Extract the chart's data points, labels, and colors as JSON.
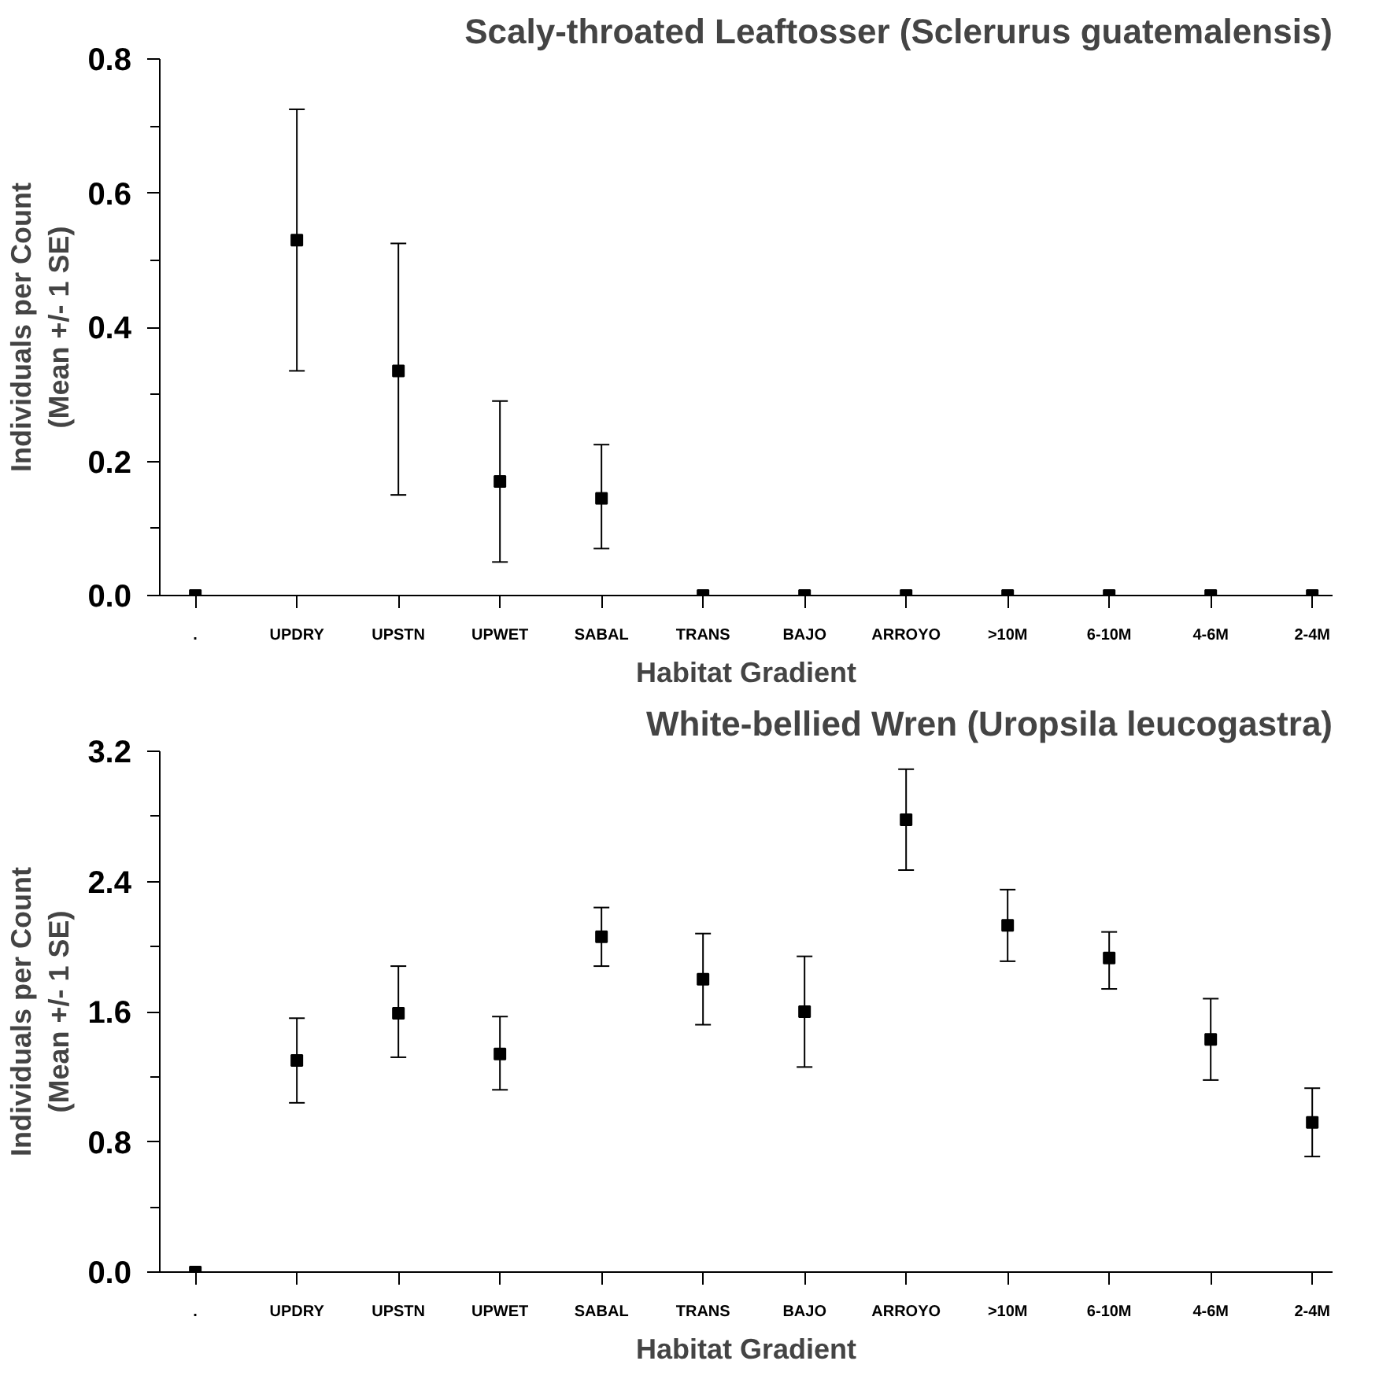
{
  "chart_data": [
    {
      "type": "scatter",
      "title": "Scaly-throated Leaftosser (Sclerurus guatemalensis)",
      "xlabel": "Habitat Gradient",
      "ylabel": "Individuals per Count\n(Mean +/- 1 SE)",
      "categories": [
        ".",
        "UPDRY",
        "UPSTN",
        "UPWET",
        "SABAL",
        "TRANS",
        "BAJO",
        "ARROYO",
        ">10M",
        "6-10M",
        "4-6M",
        "2-4M"
      ],
      "values": [
        0,
        0.53,
        0.335,
        0.17,
        0.145,
        0,
        0,
        0,
        0,
        0,
        0,
        0
      ],
      "errors": [
        null,
        [
          0.335,
          0.725
        ],
        [
          0.15,
          0.525
        ],
        [
          0.05,
          0.29
        ],
        [
          0.07,
          0.225
        ],
        null,
        null,
        null,
        null,
        null,
        null,
        null
      ],
      "color": "#000000",
      "marker": "square",
      "grid": false,
      "legend": false,
      "ylim": [
        0,
        0.8
      ],
      "yticks": [
        {
          "value": 0,
          "label": "0.0"
        },
        {
          "value": 0.1,
          "label": null
        },
        0.2,
        {
          "value": 0.3,
          "label": null
        },
        0.4,
        {
          "value": 0.5,
          "label": null
        },
        0.6,
        {
          "value": 0.7,
          "label": null
        },
        0.8
      ]
    },
    {
      "type": "scatter",
      "title": "White-bellied Wren (Uropsila leucogastra)",
      "xlabel": "Habitat Gradient",
      "ylabel": "Individuals per Count\n(Mean +/- 1 SE)",
      "categories": [
        ".",
        "UPDRY",
        "UPSTN",
        "UPWET",
        "SABAL",
        "TRANS",
        "BAJO",
        "ARROYO",
        ">10M",
        "6-10M",
        "4-6M",
        "2-4M"
      ],
      "values": [
        0,
        1.3,
        1.59,
        1.34,
        2.06,
        1.8,
        1.6,
        2.78,
        2.13,
        1.93,
        1.43,
        0.92
      ],
      "errors": [
        null,
        [
          1.04,
          1.56
        ],
        [
          1.32,
          1.88
        ],
        [
          1.12,
          1.57
        ],
        [
          1.88,
          2.24
        ],
        [
          1.52,
          2.08
        ],
        [
          1.26,
          1.94
        ],
        [
          2.47,
          3.09
        ],
        [
          1.91,
          2.35
        ],
        [
          1.74,
          2.09
        ],
        [
          1.18,
          1.68
        ],
        [
          0.71,
          1.13
        ]
      ],
      "color": "#000000",
      "marker": "square",
      "grid": false,
      "legend": false,
      "ylim": [
        0,
        3.2
      ],
      "yticks": [
        {
          "value": 0,
          "label": "0.0"
        },
        {
          "value": 0.4,
          "label": null
        },
        0.8,
        {
          "value": 1.2,
          "label": null
        },
        1.6,
        {
          "value": 2.0,
          "label": null
        },
        2.4,
        {
          "value": 2.8,
          "label": null
        },
        3.2
      ]
    }
  ]
}
